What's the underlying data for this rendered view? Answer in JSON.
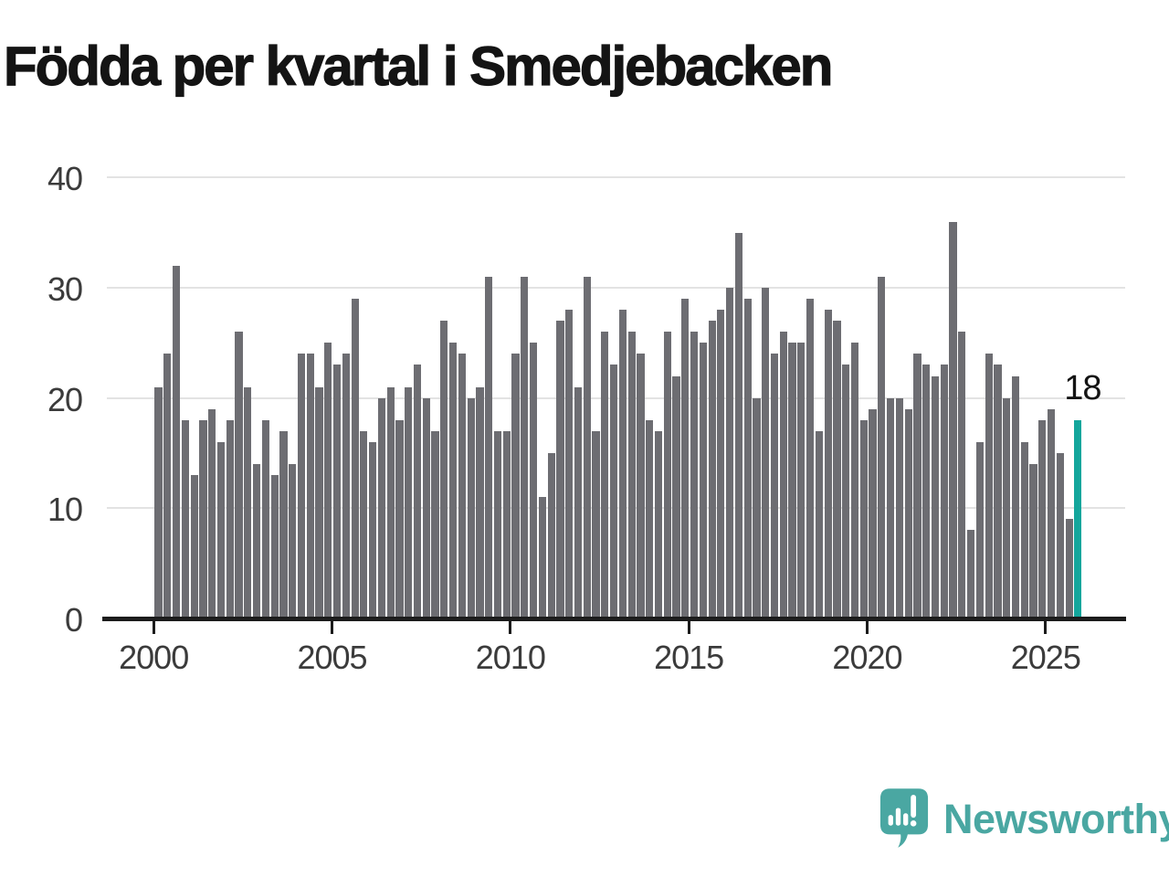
{
  "title": "Födda per kvartal i Smedjebacken",
  "colors": {
    "bar": "#6d6d72",
    "highlight": "#14a69c",
    "gridline": "#e3e3e3",
    "axis": "#1c1c1c",
    "tick_label": "#3b3b3b",
    "logo_teal": "#4aa7a2"
  },
  "chart_data": {
    "type": "bar",
    "title": "Födda per kvartal i Smedjebacken",
    "x_unit": "quarter",
    "start_period": "2000 Q1",
    "end_period": "2025 Q4",
    "x_tick_labels": [
      "2000",
      "2005",
      "2010",
      "2015",
      "2020",
      "2025"
    ],
    "y_ticks": [
      0,
      10,
      20,
      30,
      40
    ],
    "ylim": [
      0,
      40
    ],
    "grid": "horizontal",
    "legend": "none",
    "series": [
      {
        "name": "Födda per kvartal",
        "values": [
          21,
          24,
          32,
          18,
          13,
          18,
          19,
          16,
          18,
          26,
          21,
          14,
          18,
          13,
          17,
          14,
          24,
          24,
          21,
          25,
          23,
          24,
          29,
          17,
          16,
          20,
          21,
          18,
          21,
          23,
          20,
          17,
          27,
          25,
          24,
          20,
          21,
          31,
          17,
          17,
          24,
          31,
          25,
          11,
          15,
          27,
          28,
          21,
          31,
          17,
          26,
          23,
          28,
          26,
          24,
          18,
          17,
          26,
          22,
          29,
          26,
          25,
          27,
          28,
          30,
          35,
          29,
          20,
          30,
          24,
          26,
          25,
          25,
          29,
          17,
          28,
          27,
          23,
          25,
          18,
          19,
          31,
          20,
          20,
          19,
          24,
          23,
          22,
          23,
          36,
          26,
          8,
          16,
          24,
          23,
          20,
          22,
          16,
          14,
          18,
          19,
          15,
          9,
          18
        ]
      }
    ],
    "values_start_year": 2000,
    "highlight": {
      "index": 103,
      "period": "2025 Q4",
      "value": 18,
      "label": "18"
    }
  },
  "logo": {
    "text": "Newsworthy"
  }
}
